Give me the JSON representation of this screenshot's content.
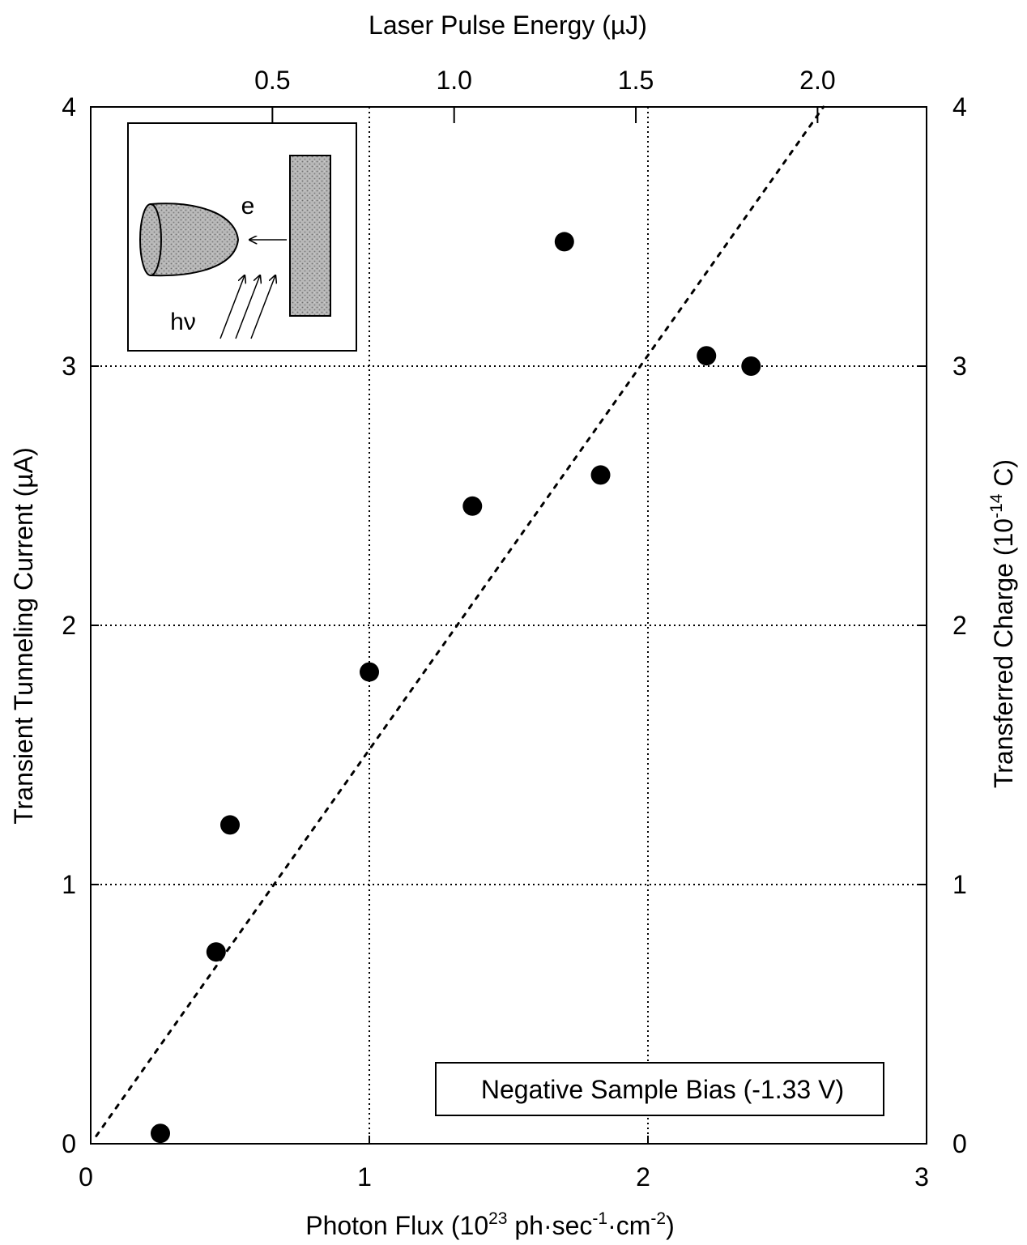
{
  "chart_data": {
    "type": "scatter",
    "xlabel": {
      "base": "Photon Flux (10",
      "sup1": "23",
      "mid": " ph·sec",
      "sup2": "-1",
      "mid2": "·cm",
      "sup3": "-2",
      "end": ")"
    },
    "x2label": "Laser Pulse Energy (µJ)",
    "ylabel": "Transient Tunneling Current (µA)",
    "y2label": {
      "base": "Transferred Charge (10",
      "sup": "-14",
      "end": " C)"
    },
    "xlim": [
      0,
      3
    ],
    "ylim": [
      0,
      4
    ],
    "x2lim": [
      0,
      2.3
    ],
    "xticks": [
      0,
      1,
      2,
      3
    ],
    "xtick_labels": [
      "0",
      "1",
      "2",
      "3"
    ],
    "yticks": [
      0,
      1,
      2,
      3,
      4
    ],
    "ytick_labels": [
      "0",
      "1",
      "2",
      "3",
      "4"
    ],
    "x2ticks": [
      0.5,
      1.0,
      1.5,
      2.0
    ],
    "x2tick_labels": [
      "0.5",
      "1.0",
      "1.5",
      "2.0"
    ],
    "y2tick_labels": [
      "0",
      "1",
      "2",
      "3",
      "4"
    ],
    "grid": "dotted",
    "series": [
      {
        "x": [
          0.25,
          0.45,
          0.5,
          1.0,
          1.37,
          1.7,
          1.83,
          2.21,
          2.37
        ],
        "y": [
          0.04,
          0.74,
          1.23,
          1.82,
          2.46,
          3.48,
          2.58,
          3.04,
          3.0
        ]
      }
    ],
    "fit_line": {
      "x": [
        0.02,
        2.63
      ],
      "y": [
        0.03,
        4.0
      ]
    },
    "annotation": "Negative Sample Bias (-1.33 V)",
    "inset": {
      "label_e": "e",
      "label_hv": "hν"
    }
  }
}
